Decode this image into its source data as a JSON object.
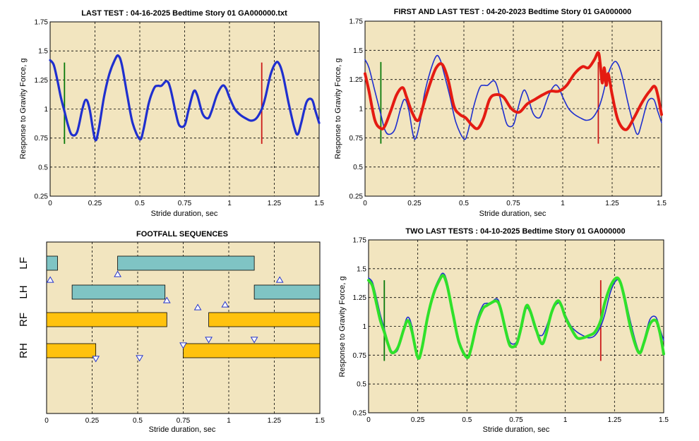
{
  "colors": {
    "plot_bg": "#f2e5bf",
    "blue": "#1f2fcf",
    "red": "#e41b12",
    "green": "#2fe12a",
    "marker_green": "#0a7a0a",
    "marker_red": "#cc1a1a",
    "fore_bar": "#7fc4c4",
    "hind_bar": "#ffc20e",
    "triangle": "#2233cc"
  },
  "chart_data": [
    {
      "id": "p1",
      "type": "line",
      "title": "LAST TEST : 04-16-2025 Bedtime Story 01 GA000000.txt",
      "xlabel": "Stride duration, sec",
      "ylabel": "Response to Gravity Force, g",
      "xlim": [
        0,
        1.5
      ],
      "ylim": [
        0.25,
        1.75
      ],
      "xticks": [
        "0",
        "0.25",
        "0.5",
        "0.75",
        "1",
        "1.25",
        "1.5"
      ],
      "yticks": [
        "0.25",
        "0.5",
        "0.75",
        "1",
        "1.25",
        "1.5",
        "1.75"
      ],
      "grid": true,
      "vlines": [
        {
          "x": 0.08,
          "y1": 0.7,
          "y2": 1.4,
          "color": "green"
        },
        {
          "x": 1.18,
          "y1": 0.7,
          "y2": 1.4,
          "color": "red"
        }
      ],
      "series": [
        {
          "color": "blue",
          "width": 3.2,
          "x": [
            0,
            0.02,
            0.04,
            0.06,
            0.08,
            0.1,
            0.12,
            0.15,
            0.18,
            0.2,
            0.22,
            0.25,
            0.27,
            0.3,
            0.33,
            0.36,
            0.38,
            0.4,
            0.43,
            0.46,
            0.5,
            0.52,
            0.55,
            0.58,
            0.6,
            0.62,
            0.65,
            0.67,
            0.7,
            0.72,
            0.75,
            0.77,
            0.8,
            0.82,
            0.85,
            0.88,
            0.9,
            0.93,
            0.96,
            0.98,
            1.0,
            1.03,
            1.06,
            1.09,
            1.12,
            1.15,
            1.18,
            1.2,
            1.23,
            1.26,
            1.28,
            1.3,
            1.33,
            1.36,
            1.38,
            1.4,
            1.43,
            1.46,
            1.48,
            1.5
          ],
          "y": [
            1.42,
            1.38,
            1.25,
            1.1,
            0.98,
            0.86,
            0.78,
            0.8,
            1.0,
            1.08,
            1.0,
            0.74,
            0.82,
            1.1,
            1.3,
            1.42,
            1.46,
            1.38,
            1.12,
            0.88,
            0.74,
            0.82,
            1.05,
            1.18,
            1.2,
            1.2,
            1.24,
            1.18,
            0.97,
            0.86,
            0.86,
            0.98,
            1.15,
            1.12,
            0.96,
            0.92,
            0.98,
            1.12,
            1.2,
            1.18,
            1.1,
            1.0,
            0.95,
            0.92,
            0.9,
            0.92,
            1.0,
            1.1,
            1.3,
            1.4,
            1.38,
            1.28,
            1.05,
            0.85,
            0.78,
            0.88,
            1.06,
            1.08,
            0.98,
            0.88
          ]
        }
      ]
    },
    {
      "id": "p2",
      "type": "line",
      "title": "FIRST AND LAST TEST : 04-20-2023 Bedtime Story 01 GA000000",
      "xlabel": "Stride duration, sec",
      "ylabel": "Response to Gravity Force, g",
      "xlim": [
        0,
        1.5
      ],
      "ylim": [
        0.25,
        1.75
      ],
      "xticks": [
        "0",
        "0.25",
        "0.5",
        "0.75",
        "1",
        "1.25",
        "1.5"
      ],
      "yticks": [
        "0.25",
        "0.5",
        "0.75",
        "1",
        "1.25",
        "1.5",
        "1.75"
      ],
      "grid": true,
      "vlines": [
        {
          "x": 0.08,
          "y1": 0.7,
          "y2": 1.4,
          "color": "green"
        },
        {
          "x": 1.18,
          "y1": 0.7,
          "y2": 1.4,
          "color": "red"
        }
      ],
      "series": [
        {
          "color": "blue",
          "width": 1.6,
          "x": [
            0,
            0.02,
            0.05,
            0.08,
            0.1,
            0.12,
            0.15,
            0.18,
            0.2,
            0.22,
            0.25,
            0.28,
            0.3,
            0.33,
            0.36,
            0.38,
            0.4,
            0.43,
            0.46,
            0.5,
            0.52,
            0.55,
            0.58,
            0.6,
            0.62,
            0.65,
            0.67,
            0.7,
            0.72,
            0.75,
            0.77,
            0.8,
            0.82,
            0.85,
            0.88,
            0.9,
            0.93,
            0.96,
            0.98,
            1.0,
            1.03,
            1.06,
            1.09,
            1.12,
            1.15,
            1.18,
            1.2,
            1.23,
            1.26,
            1.28,
            1.3,
            1.33,
            1.36,
            1.38,
            1.4,
            1.43,
            1.46,
            1.48,
            1.5
          ],
          "y": [
            1.42,
            1.35,
            1.15,
            0.95,
            0.82,
            0.78,
            0.82,
            1.0,
            1.08,
            1.0,
            0.74,
            0.9,
            1.12,
            1.32,
            1.45,
            1.42,
            1.3,
            1.1,
            0.88,
            0.74,
            0.8,
            1.02,
            1.18,
            1.2,
            1.2,
            1.24,
            1.18,
            0.97,
            0.86,
            0.86,
            0.98,
            1.15,
            1.12,
            0.96,
            0.92,
            0.98,
            1.12,
            1.2,
            1.18,
            1.1,
            1.0,
            0.95,
            0.92,
            0.9,
            0.92,
            1.0,
            1.1,
            1.3,
            1.4,
            1.38,
            1.28,
            1.05,
            0.85,
            0.78,
            0.88,
            1.06,
            1.08,
            0.98,
            0.88
          ]
        },
        {
          "color": "red",
          "width": 4,
          "x": [
            0,
            0.02,
            0.05,
            0.08,
            0.1,
            0.13,
            0.16,
            0.19,
            0.21,
            0.24,
            0.27,
            0.3,
            0.33,
            0.36,
            0.39,
            0.42,
            0.45,
            0.48,
            0.51,
            0.54,
            0.57,
            0.6,
            0.63,
            0.66,
            0.7,
            0.74,
            0.78,
            0.82,
            0.86,
            0.9,
            0.94,
            0.98,
            1.02,
            1.06,
            1.1,
            1.13,
            1.16,
            1.18,
            1.19,
            1.2,
            1.21,
            1.22,
            1.23,
            1.25,
            1.28,
            1.32,
            1.36,
            1.4,
            1.44,
            1.47,
            1.5
          ],
          "y": [
            1.3,
            1.15,
            0.9,
            0.83,
            0.85,
            0.98,
            1.12,
            1.18,
            1.1,
            0.96,
            0.9,
            1.06,
            1.22,
            1.35,
            1.38,
            1.25,
            1.02,
            0.95,
            0.92,
            0.86,
            0.83,
            0.92,
            1.08,
            1.12,
            1.1,
            1.0,
            0.97,
            1.04,
            1.08,
            1.12,
            1.15,
            1.15,
            1.2,
            1.3,
            1.36,
            1.35,
            1.42,
            1.48,
            1.38,
            1.22,
            1.35,
            1.2,
            1.3,
            1.12,
            0.9,
            0.82,
            0.92,
            1.05,
            1.15,
            1.18,
            0.95
          ]
        }
      ]
    },
    {
      "id": "p3",
      "type": "gantt",
      "title": "FOOTFALL SEQUENCES",
      "xlabel": "Stride duration, sec",
      "xlim": [
        0,
        1.5
      ],
      "xticks": [
        "0",
        "0.25",
        "0.5",
        "0.75",
        "1",
        "1.25",
        "1.5"
      ],
      "grid": true,
      "rows": [
        {
          "label": "LF",
          "color": "fore",
          "bars": [
            [
              0,
              0.06
            ],
            [
              0.39,
              1.14
            ]
          ]
        },
        {
          "label": "LH",
          "color": "fore",
          "bars": [
            [
              0.14,
              0.65
            ],
            [
              1.14,
              1.5
            ]
          ]
        },
        {
          "label": "RF",
          "color": "hind",
          "bars": [
            [
              0,
              0.66
            ],
            [
              0.89,
              1.5
            ]
          ]
        },
        {
          "label": "RH",
          "color": "hind",
          "bars": [
            [
              0,
              0.27
            ],
            [
              0.75,
              1.5
            ]
          ]
        }
      ],
      "markers": [
        {
          "x": 0.02,
          "row": 0,
          "dir": "up"
        },
        {
          "x": 0.39,
          "row": 0,
          "dir": "up"
        },
        {
          "x": 1.28,
          "row": 0,
          "dir": "up"
        },
        {
          "x": 0.66,
          "row": 1,
          "dir": "up"
        },
        {
          "x": 0.83,
          "row": 1,
          "dir": "up"
        },
        {
          "x": 0.98,
          "row": 1,
          "dir": "up"
        },
        {
          "x": 0.75,
          "row": 2,
          "dir": "down"
        },
        {
          "x": 0.89,
          "row": 2,
          "dir": "down"
        },
        {
          "x": 1.14,
          "row": 2,
          "dir": "down"
        },
        {
          "x": 0.27,
          "row": 3,
          "dir": "down"
        },
        {
          "x": 0.51,
          "row": 3,
          "dir": "down"
        }
      ]
    },
    {
      "id": "p4",
      "type": "line",
      "title": "TWO LAST TESTS : 04-10-2025 Bedtime Story 01 GA000000",
      "xlabel": "Stride duration, sec",
      "ylabel": "Response to Gravity Force, g",
      "xlim": [
        0,
        1.5
      ],
      "ylim": [
        0.25,
        1.75
      ],
      "xticks": [
        "0",
        "0.25",
        "0.5",
        "0.75",
        "1",
        "1.25",
        "1.5"
      ],
      "yticks": [
        "0.25",
        "0.5",
        "0.75",
        "1",
        "1.25",
        "1.5",
        "1.75"
      ],
      "grid": true,
      "vlines": [
        {
          "x": 0.08,
          "y1": 0.7,
          "y2": 1.4,
          "color": "green"
        },
        {
          "x": 1.18,
          "y1": 0.7,
          "y2": 1.4,
          "color": "red"
        }
      ],
      "series": [
        {
          "color": "blue",
          "width": 1.6,
          "x": [
            0,
            0.02,
            0.04,
            0.06,
            0.08,
            0.1,
            0.12,
            0.15,
            0.18,
            0.2,
            0.22,
            0.25,
            0.27,
            0.3,
            0.33,
            0.36,
            0.38,
            0.4,
            0.43,
            0.46,
            0.5,
            0.52,
            0.55,
            0.58,
            0.6,
            0.62,
            0.65,
            0.67,
            0.7,
            0.72,
            0.75,
            0.77,
            0.8,
            0.82,
            0.85,
            0.88,
            0.9,
            0.93,
            0.96,
            0.98,
            1.0,
            1.03,
            1.06,
            1.09,
            1.12,
            1.15,
            1.18,
            1.2,
            1.23,
            1.26,
            1.28,
            1.3,
            1.33,
            1.36,
            1.38,
            1.4,
            1.43,
            1.46,
            1.48,
            1.5
          ],
          "y": [
            1.42,
            1.38,
            1.25,
            1.1,
            0.98,
            0.86,
            0.78,
            0.8,
            1.0,
            1.08,
            1.0,
            0.74,
            0.82,
            1.1,
            1.3,
            1.42,
            1.46,
            1.38,
            1.12,
            0.88,
            0.74,
            0.82,
            1.05,
            1.18,
            1.2,
            1.2,
            1.24,
            1.18,
            0.97,
            0.86,
            0.86,
            0.98,
            1.15,
            1.12,
            0.96,
            0.92,
            0.98,
            1.12,
            1.2,
            1.18,
            1.1,
            1.0,
            0.95,
            0.92,
            0.9,
            0.92,
            1.0,
            1.1,
            1.3,
            1.4,
            1.38,
            1.28,
            1.05,
            0.85,
            0.78,
            0.88,
            1.06,
            1.08,
            0.98,
            0.88
          ]
        },
        {
          "color": "green",
          "width": 4,
          "x": [
            0,
            0.02,
            0.04,
            0.06,
            0.08,
            0.1,
            0.12,
            0.15,
            0.18,
            0.2,
            0.22,
            0.25,
            0.27,
            0.3,
            0.33,
            0.36,
            0.38,
            0.4,
            0.43,
            0.46,
            0.5,
            0.52,
            0.55,
            0.58,
            0.6,
            0.62,
            0.65,
            0.67,
            0.7,
            0.72,
            0.75,
            0.77,
            0.8,
            0.82,
            0.85,
            0.88,
            0.9,
            0.93,
            0.96,
            0.98,
            1.0,
            1.03,
            1.06,
            1.09,
            1.12,
            1.15,
            1.18,
            1.2,
            1.23,
            1.26,
            1.28,
            1.3,
            1.33,
            1.36,
            1.38,
            1.4,
            1.43,
            1.46,
            1.48,
            1.5
          ],
          "y": [
            1.4,
            1.35,
            1.2,
            1.05,
            0.95,
            0.84,
            0.77,
            0.82,
            0.98,
            1.05,
            0.96,
            0.73,
            0.8,
            1.08,
            1.28,
            1.4,
            1.44,
            1.35,
            1.1,
            0.86,
            0.73,
            0.8,
            1.02,
            1.15,
            1.18,
            1.2,
            1.22,
            1.16,
            0.94,
            0.83,
            0.84,
            0.95,
            1.17,
            1.14,
            0.98,
            0.85,
            0.92,
            1.12,
            1.22,
            1.18,
            1.08,
            0.98,
            0.9,
            0.9,
            0.92,
            0.95,
            1.05,
            1.2,
            1.35,
            1.42,
            1.38,
            1.25,
            1.0,
            0.82,
            0.77,
            0.86,
            1.02,
            1.05,
            0.95,
            0.76
          ]
        }
      ]
    }
  ]
}
